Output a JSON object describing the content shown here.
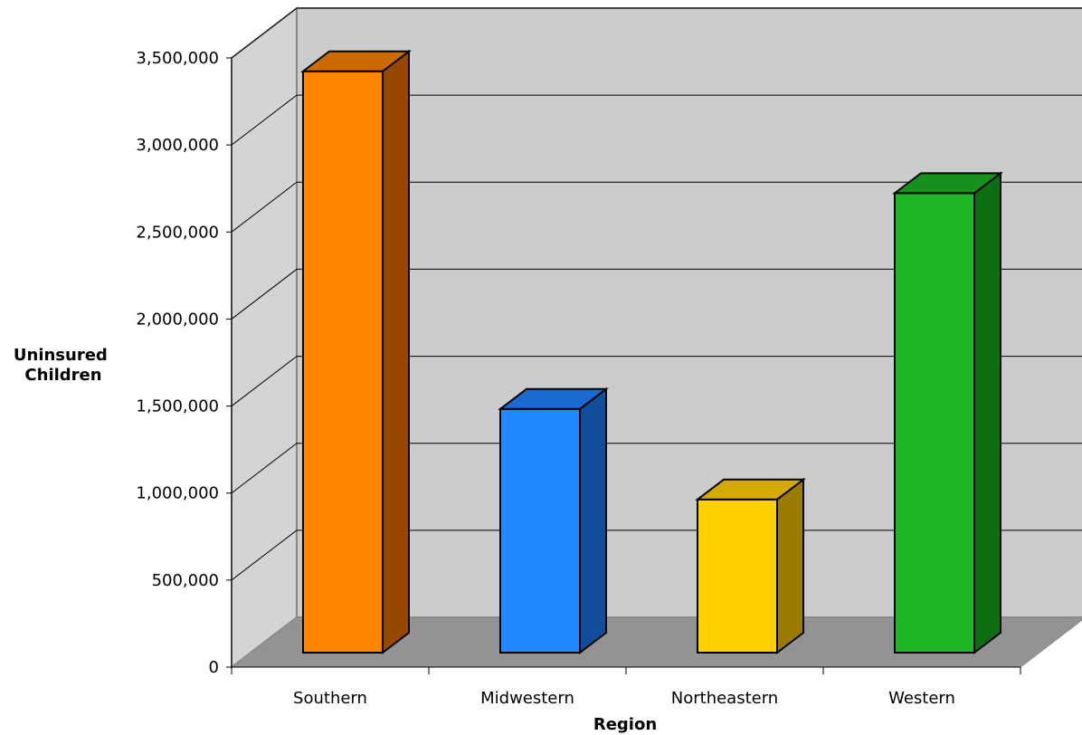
{
  "chart_data": {
    "type": "bar",
    "style": "3d-column",
    "categories": [
      "Southern",
      "Midwestern",
      "Northeastern",
      "Western"
    ],
    "series": [
      {
        "values": [
          3340000,
          1400000,
          880000,
          2640000
        ]
      }
    ],
    "bar_colors": {
      "front": [
        "#ff8400",
        "#2288ff",
        "#ffd000",
        "#1fb725"
      ],
      "side": [
        "#964800",
        "#104e9c",
        "#9a7a00",
        "#0d6d13"
      ],
      "top": [
        "#cc6a00",
        "#1b6ad0",
        "#d4a900",
        "#17911d"
      ]
    },
    "xlabel": "Region",
    "ylabel": [
      "Uninsured",
      "Children"
    ],
    "ylim": [
      0,
      3500000
    ],
    "yticks": [
      0,
      500000,
      1000000,
      1500000,
      2000000,
      2500000,
      3000000,
      3500000
    ],
    "ytick_labels": [
      "0",
      "500,000",
      "1,000,000",
      "1,500,000",
      "2,000,000",
      "2,500,000",
      "3,000,000",
      "3,500,000"
    ],
    "grid": true,
    "legend": "none",
    "colors": {
      "back_wall": "#cccccc",
      "side_wall": "#d4d4d4",
      "floor": "#939393",
      "grid_line": "#000000"
    }
  }
}
